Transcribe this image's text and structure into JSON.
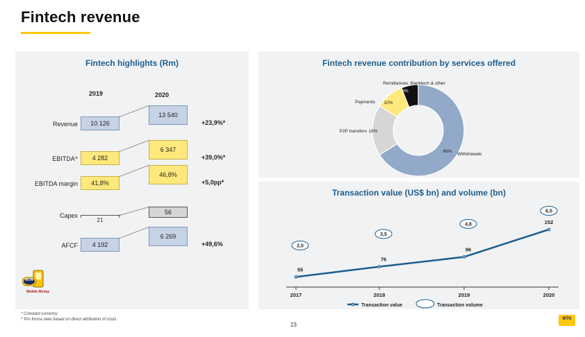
{
  "page": {
    "title": "Fintech revenue",
    "page_number": "23"
  },
  "highlights": {
    "title": "Fintech highlights  (Rm)",
    "years": [
      "2019",
      "2020"
    ],
    "rows": [
      {
        "label": "Revenue",
        "v2019": "10 126",
        "v2020": "13 540",
        "change": "+23,9%*",
        "color": "blue"
      },
      {
        "label": "EBITDA^",
        "v2019": "4 282",
        "v2020": "6 347",
        "change": "+39,0%*",
        "color": "yellow"
      },
      {
        "label": "EBITDA margin",
        "v2019": "41,8%",
        "v2020": "46,8%",
        "change": "+5,0pp*",
        "color": "yellow"
      },
      {
        "label": "Capex",
        "v2019": "21",
        "v2020": "56",
        "change": "",
        "color": "grey"
      },
      {
        "label": "AFCF",
        "v2019": "4 192",
        "v2020": "6 269",
        "change": "+49,6%",
        "color": "blue"
      }
    ],
    "logo": {
      "brand": "MTN",
      "caption": "Mobile Money"
    }
  },
  "footnotes": [
    "* Constant currency",
    "^ Pro forma view based on direct attribution of costs"
  ],
  "corner_logo": "MTN",
  "chart_data": [
    {
      "type": "pie",
      "title": "Fintech revenue contribution by services offered",
      "slices": [
        {
          "label": "Withdrawals",
          "value": 66,
          "value_label": "66%",
          "color": "#92a9c9"
        },
        {
          "label": "P2P transfers",
          "value": 18,
          "value_label": "18%",
          "color": "#d6d6d6"
        },
        {
          "label": "Payments",
          "value": 10,
          "value_label": "10%",
          "color": "#ffe87c"
        },
        {
          "label": "Remittances, Banktech & other",
          "value": 6,
          "value_label": "6%",
          "color": "#111111"
        }
      ]
    },
    {
      "type": "line",
      "title": "Transaction value (US$ bn) and volume (bn)",
      "x": [
        "2017",
        "2018",
        "2019",
        "2020"
      ],
      "series": [
        {
          "name": "Transaction value",
          "values": [
            55,
            76,
            96,
            152
          ],
          "labels": [
            "55",
            "76",
            "96",
            "152"
          ],
          "color": "#1b5d8e"
        },
        {
          "name": "Transaction volume",
          "values": [
            2.0,
            3.5,
            4.8,
            6.5
          ],
          "labels": [
            "2,0",
            "3,5",
            "4,8",
            "6,5"
          ],
          "color": "#1b5d8e"
        }
      ],
      "grid": false,
      "legend": "bottom"
    }
  ]
}
